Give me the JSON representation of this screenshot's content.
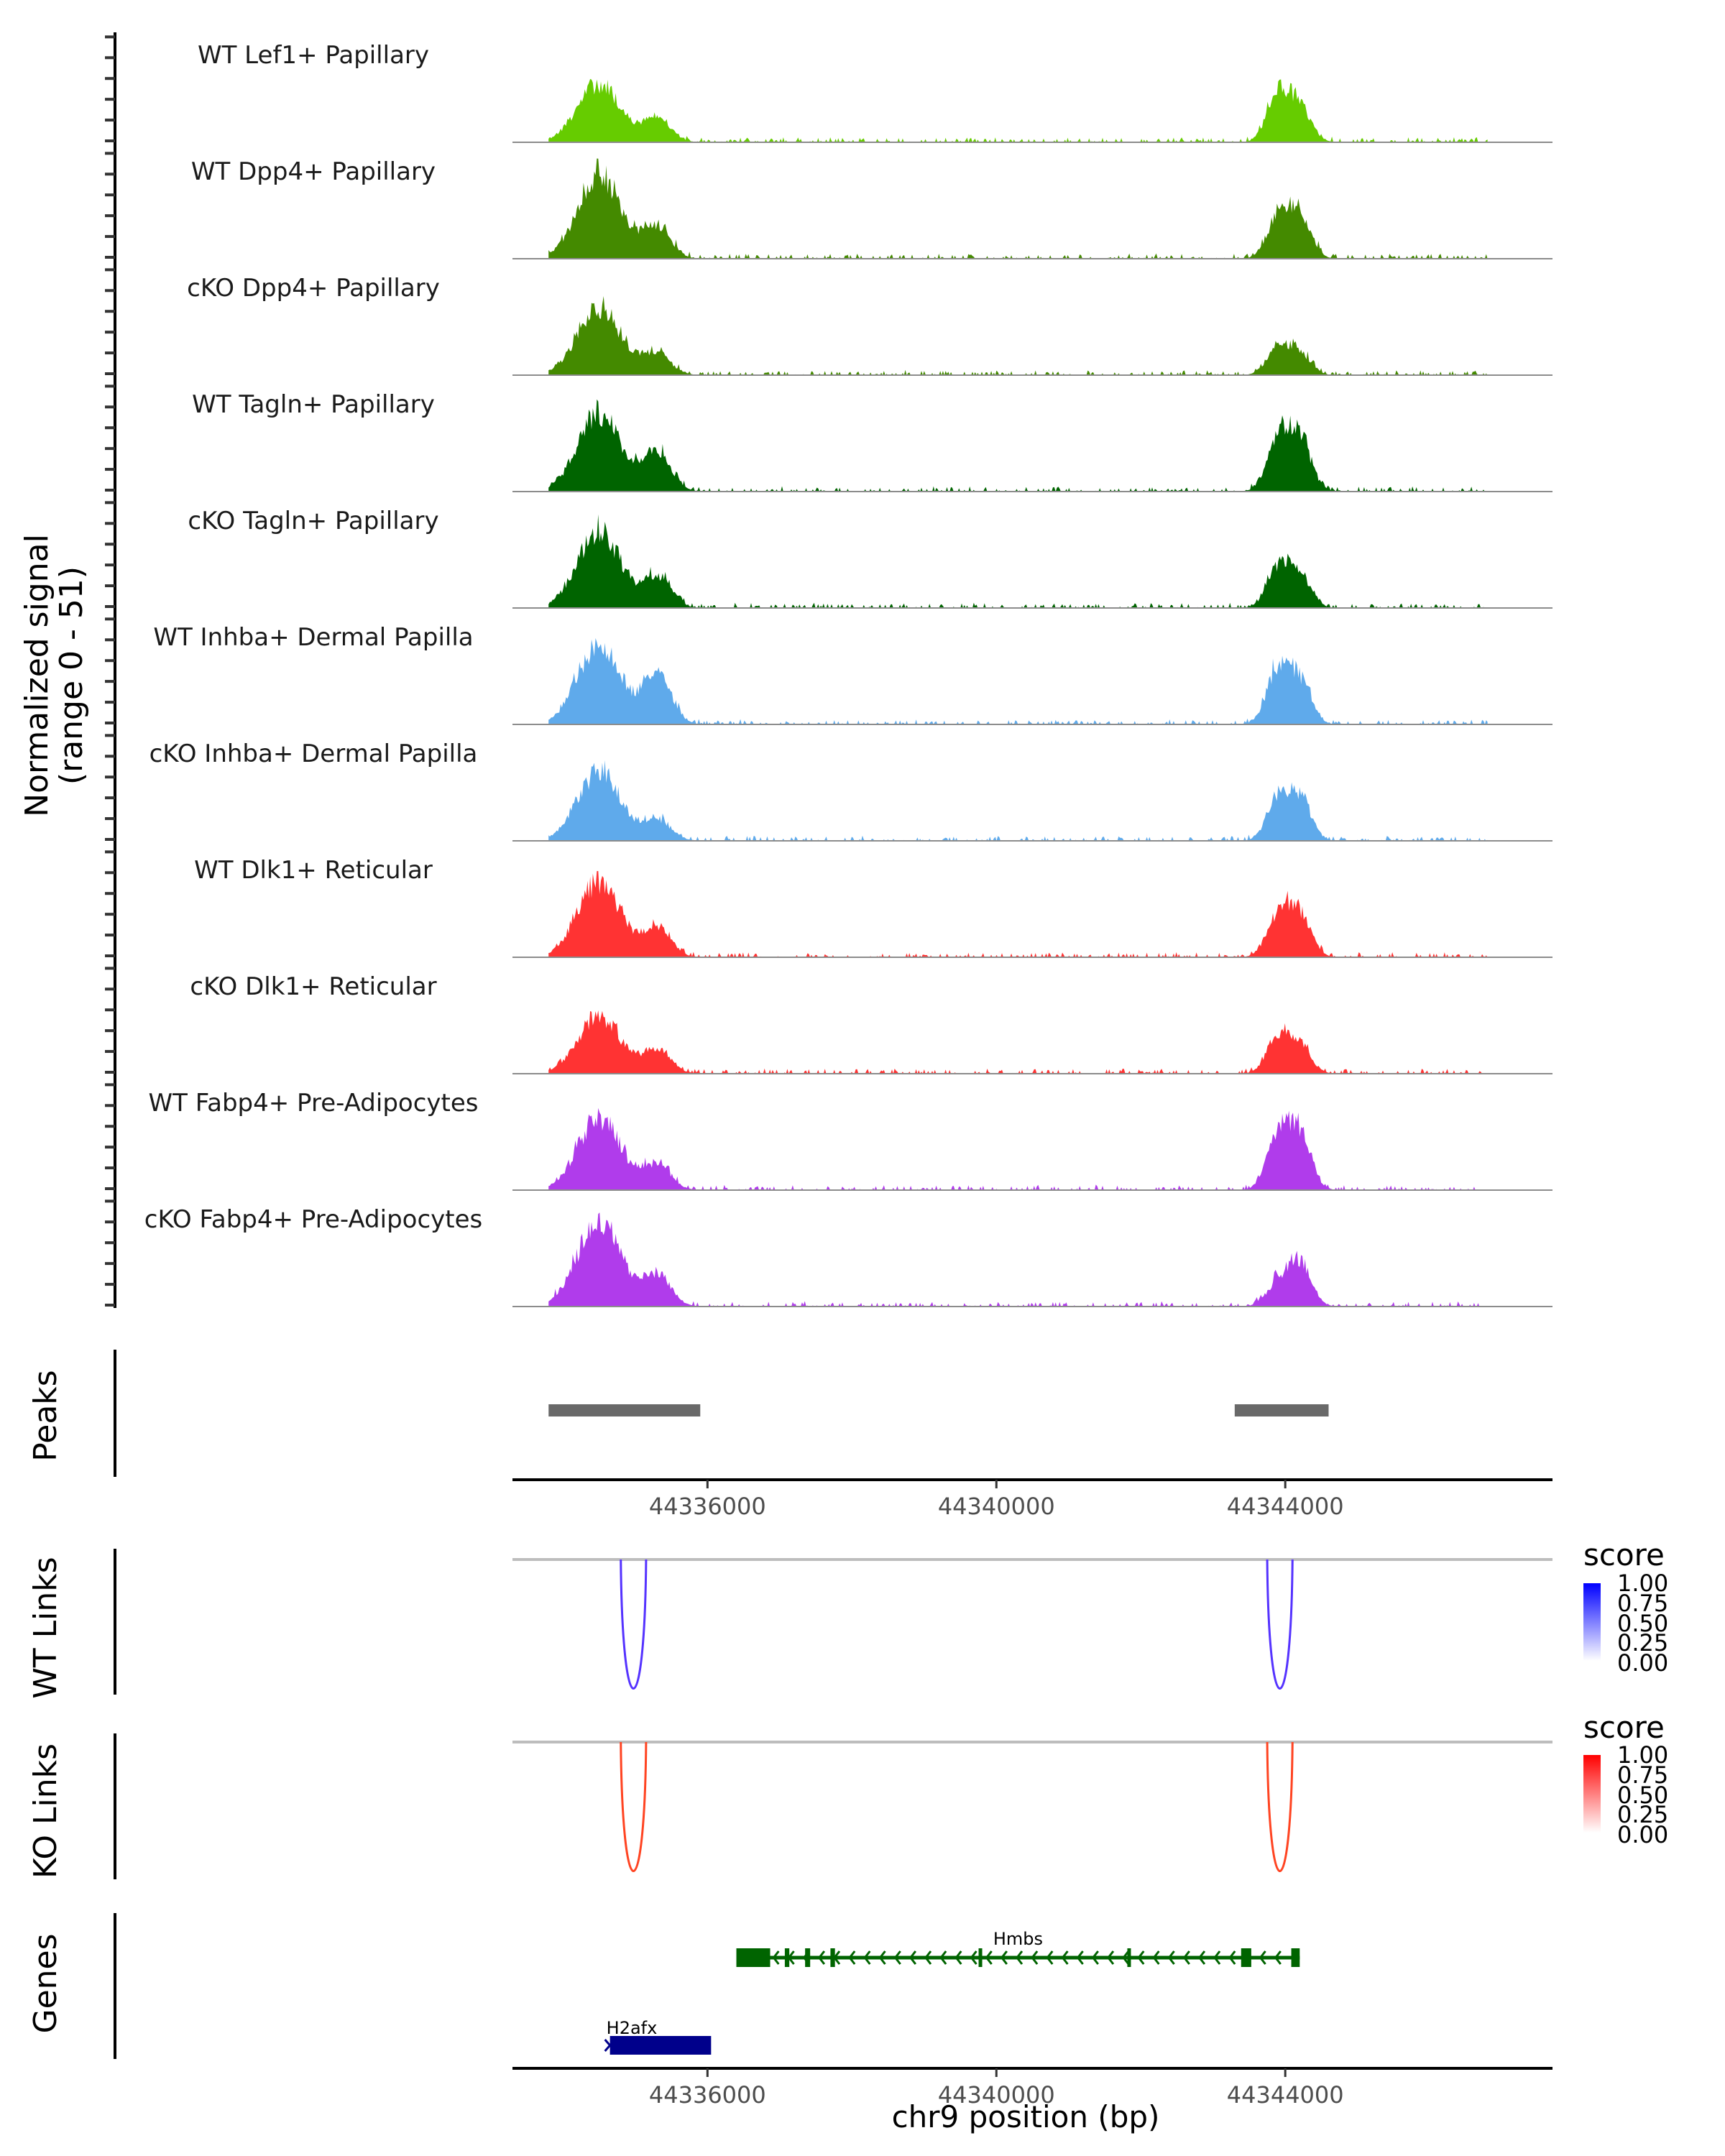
{
  "chart_data": {
    "type": "area",
    "title": "",
    "region": {
      "chrom": "chr9",
      "start": 44333300,
      "end": 44347700
    },
    "xlabel": "chr9 position (bp)",
    "x_ticks": [
      {
        "value": 44336000,
        "label": "44336000"
      },
      {
        "value": 44340000,
        "label": "44340000"
      },
      {
        "value": 44344000,
        "label": "44344000"
      }
    ],
    "coverage_ylabel_line1": "Normalized signal",
    "coverage_ylabel_line2": "(range 0 - 51)",
    "coverage_range": [
      0,
      51
    ],
    "coverage_tracks": [
      {
        "name": "WT Lef1+ Papillary",
        "color": "#66CC00",
        "peaks": [
          [
            44334500,
            28,
            44335000
          ],
          [
            44335300,
            11,
            44335500
          ],
          [
            44343900,
            22,
            44344000
          ],
          [
            44344200,
            17,
            44344300
          ]
        ]
      },
      {
        "name": "WT Dpp4+ Papillary",
        "color": "#448A00",
        "peaks": [
          [
            44334500,
            40,
            44335000
          ],
          [
            44335300,
            15,
            44335500
          ],
          [
            44343900,
            19,
            44344000
          ],
          [
            44344200,
            21,
            44344300
          ]
        ]
      },
      {
        "name": "cKO Dpp4+ Papillary",
        "color": "#448A00",
        "peaks": [
          [
            44334500,
            32,
            44335000
          ],
          [
            44335300,
            10,
            44335500
          ],
          [
            44343900,
            13,
            44344000
          ],
          [
            44344200,
            10,
            44344300
          ]
        ]
      },
      {
        "name": "WT Tagln+ Papillary",
        "color": "#006400",
        "peaks": [
          [
            44334500,
            37,
            44335000
          ],
          [
            44335300,
            19,
            44335500
          ],
          [
            44343900,
            24,
            44344000
          ],
          [
            44344200,
            25,
            44344300
          ]
        ]
      },
      {
        "name": "cKO Tagln+ Papillary",
        "color": "#006400",
        "peaks": [
          [
            44334500,
            36,
            44335000
          ],
          [
            44335300,
            15,
            44335500
          ],
          [
            44343900,
            18,
            44344000
          ],
          [
            44344200,
            15,
            44344300
          ]
        ]
      },
      {
        "name": "WT Inhba+ Dermal Papilla",
        "color": "#5FAAEB",
        "peaks": [
          [
            44334500,
            38,
            44335000
          ],
          [
            44335300,
            24,
            44335500
          ],
          [
            44343900,
            26,
            44344000
          ],
          [
            44344200,
            20,
            44344300
          ]
        ]
      },
      {
        "name": "cKO Inhba+ Dermal Papilla",
        "color": "#5FAAEB",
        "peaks": [
          [
            44334500,
            33,
            44335000
          ],
          [
            44335300,
            10,
            44335500
          ],
          [
            44343900,
            19,
            44344000
          ],
          [
            44344200,
            20,
            44344300
          ]
        ]
      },
      {
        "name": "WT Dlk1+ Reticular",
        "color": "#FF3333",
        "peaks": [
          [
            44334500,
            36,
            44335000
          ],
          [
            44335300,
            14,
            44335500
          ],
          [
            44343900,
            20,
            44344000
          ],
          [
            44344200,
            20,
            44344300
          ]
        ]
      },
      {
        "name": "cKO Dlk1+ Reticular",
        "color": "#FF3333",
        "peaks": [
          [
            44334500,
            27,
            44335000
          ],
          [
            44335300,
            11,
            44335500
          ],
          [
            44343900,
            17,
            44344000
          ],
          [
            44344200,
            13,
            44344300
          ]
        ]
      },
      {
        "name": "WT Fabp4+ Pre-Adipocytes",
        "color": "#B03CEB",
        "peaks": [
          [
            44334500,
            34,
            44335000
          ],
          [
            44335300,
            12,
            44335500
          ],
          [
            44343900,
            27,
            44344000
          ],
          [
            44344200,
            26,
            44344300
          ]
        ]
      },
      {
        "name": "cKO Fabp4+ Pre-Adipocytes",
        "color": "#B03CEB",
        "peaks": [
          [
            44334500,
            41,
            44335000
          ],
          [
            44335300,
            15,
            44335500
          ],
          [
            44343900,
            11,
            44344000
          ],
          [
            44344200,
            21,
            44344300
          ]
        ]
      }
    ],
    "peaks_track": {
      "label": "Peaks",
      "color": "#696969",
      "regions": [
        [
          44333800,
          44335900
        ],
        [
          44343300,
          44344600
        ]
      ]
    },
    "links_tracks": [
      {
        "label": "WT Links",
        "color": "#5533FF",
        "legend": {
          "title": "score",
          "low": "#FFFFFF",
          "high": "#0000FF",
          "ticks": [
            "1.00",
            "0.75",
            "0.50",
            "0.25",
            "0.00"
          ]
        },
        "links": [
          {
            "start": 44334800,
            "end": 44335150,
            "score": 0.8
          },
          {
            "start": 44343750,
            "end": 44344100,
            "score": 0.8
          }
        ]
      },
      {
        "label": "KO Links",
        "color": "#FF4422",
        "legend": {
          "title": "score",
          "low": "#FFFFFF",
          "high": "#FF0000",
          "ticks": [
            "1.00",
            "0.75",
            "0.50",
            "0.25",
            "0.00"
          ]
        },
        "links": [
          {
            "start": 44334800,
            "end": 44335150,
            "score": 0.85
          },
          {
            "start": 44343750,
            "end": 44344100,
            "score": 0.75
          }
        ]
      }
    ],
    "genes_track": {
      "label": "Genes",
      "genes": [
        {
          "name": "Hmbs",
          "strand": "-",
          "color": "#006400",
          "start": 44336400,
          "end": 44344200
        },
        {
          "name": "H2afx",
          "strand": "+",
          "color": "#00008B",
          "start": 44334650,
          "end": 44336050
        }
      ]
    },
    "grid": false,
    "legend_position": "right"
  }
}
